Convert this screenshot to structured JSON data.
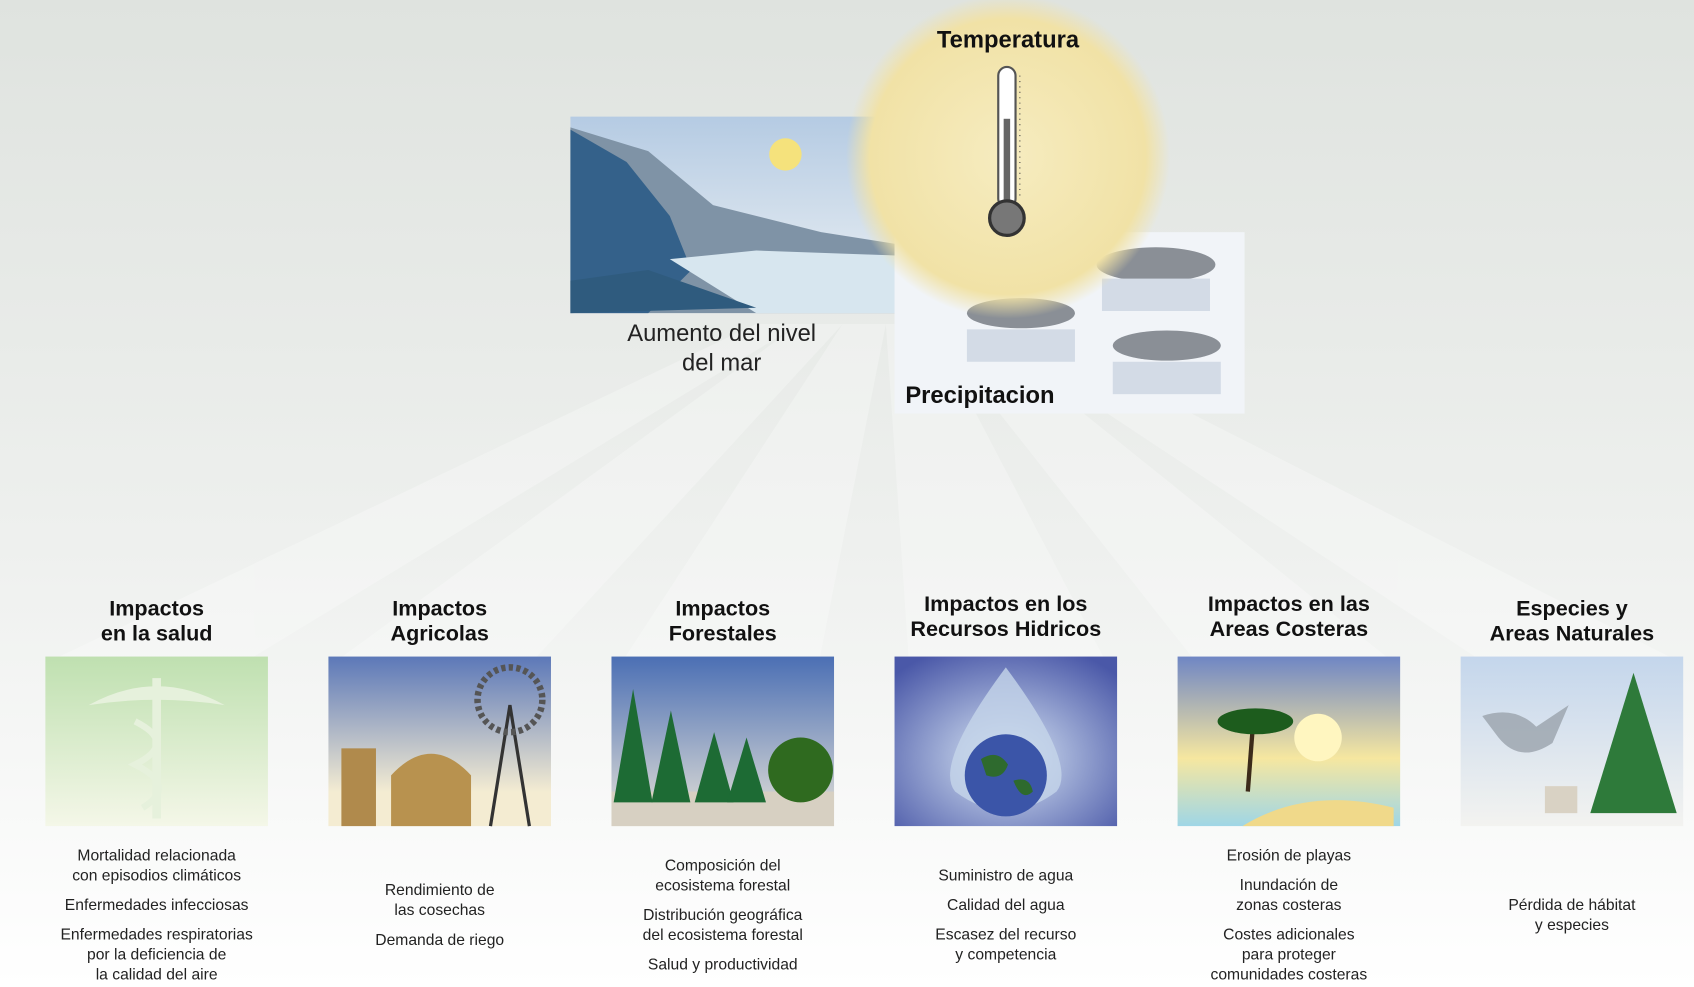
{
  "causes": {
    "temperature": "Temperatura",
    "sea_level": [
      "Aumento del nivel",
      "del mar"
    ],
    "precipitation": "Precipitacion"
  },
  "impacts": [
    {
      "title_lines": [
        "Impactos",
        "en la salud"
      ],
      "items": [
        [
          "Mortalidad relacionada",
          "con episodios climáticos"
        ],
        [
          "Enfermedades infecciosas"
        ],
        [
          "Enfermedades respiratorias",
          "por la deficiencia de",
          "la calidad del aire"
        ]
      ]
    },
    {
      "title_lines": [
        "Impactos",
        "Agricolas"
      ],
      "items": [
        [
          "Rendimiento de",
          "las cosechas"
        ],
        [
          "Demanda de riego"
        ]
      ]
    },
    {
      "title_lines": [
        "Impactos",
        "Forestales"
      ],
      "items": [
        [
          "Composición del",
          "ecosistema forestal"
        ],
        [
          "Distribución geográfica",
          "del ecosistema forestal"
        ],
        [
          "Salud y productividad"
        ]
      ]
    },
    {
      "title_lines": [
        "Impactos en los",
        "Recursos Hidricos"
      ],
      "items": [
        [
          "Suministro de agua"
        ],
        [
          "Calidad del agua"
        ],
        [
          "Escasez del recurso",
          "y competencia"
        ]
      ]
    },
    {
      "title_lines": [
        "Impactos en las",
        "Areas Costeras"
      ],
      "items": [
        [
          "Erosión de playas"
        ],
        [
          "Inundación de",
          "zonas costeras"
        ],
        [
          "Costes adicionales",
          "para proteger",
          "comunidades costeras"
        ]
      ]
    },
    {
      "title_lines": [
        "Especies y",
        "Areas Naturales"
      ],
      "items": [
        [
          "Pérdida de hábitat",
          "y especies"
        ]
      ]
    }
  ]
}
